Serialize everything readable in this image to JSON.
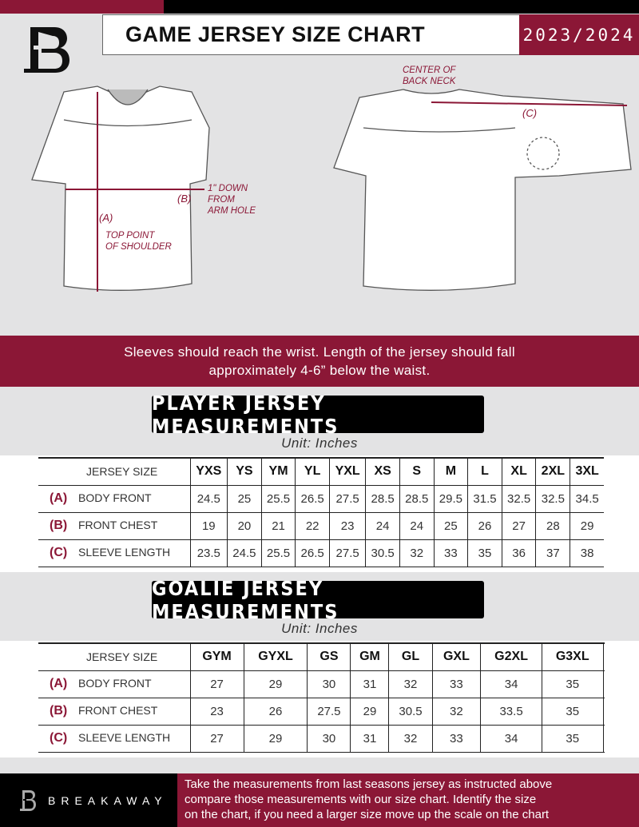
{
  "colors": {
    "accent": "#8b1736",
    "background": "#e3e3e4"
  },
  "header": {
    "title": "GAME JERSEY SIZE CHART",
    "season": "2023/2024",
    "logo": "B"
  },
  "diagram": {
    "front_labels": {
      "a": "(A)",
      "b": "(B)",
      "arm_hole": [
        "1\" DOWN",
        "FROM",
        "ARM HOLE"
      ],
      "shoulder": [
        "TOP POINT",
        "OF SHOULDER"
      ]
    },
    "back_labels": {
      "c": "(C)",
      "neck": [
        "CENTER OF",
        "BACK NECK"
      ]
    }
  },
  "band": {
    "line1": "Sleeves should reach the wrist. Length of the jersey should fall",
    "line2": "approximately 4-6” below the waist."
  },
  "player": {
    "title": "PLAYER JERSEY MEASUREMENTS",
    "unit": "Unit: Inches",
    "header_label": "JERSEY SIZE",
    "sizes": [
      "YXS",
      "YS",
      "YM",
      "YL",
      "YXL",
      "XS",
      "S",
      "M",
      "L",
      "XL",
      "2XL",
      "3XL"
    ],
    "rows": [
      {
        "code": "(A)",
        "label": "BODY FRONT",
        "values": [
          "24.5",
          "25",
          "25.5",
          "26.5",
          "27.5",
          "28.5",
          "28.5",
          "29.5",
          "31.5",
          "32.5",
          "32.5",
          "34.5"
        ]
      },
      {
        "code": "(B)",
        "label": "FRONT CHEST",
        "values": [
          "19",
          "20",
          "21",
          "22",
          "23",
          "24",
          "24",
          "25",
          "26",
          "27",
          "28",
          "29"
        ]
      },
      {
        "code": "(C)",
        "label": "SLEEVE LENGTH",
        "values": [
          "23.5",
          "24.5",
          "25.5",
          "26.5",
          "27.5",
          "30.5",
          "32",
          "33",
          "35",
          "36",
          "37",
          "38"
        ]
      }
    ]
  },
  "goalie": {
    "title": "GOALIE JERSEY MEASUREMENTS",
    "unit": "Unit: Inches",
    "header_label": "JERSEY SIZE",
    "sizes": [
      "GYM",
      "GYXL",
      "GS",
      "GM",
      "GL",
      "GXL",
      "G2XL",
      "G3XL",
      ""
    ],
    "rows": [
      {
        "code": "(A)",
        "label": "BODY FRONT",
        "values": [
          "27",
          "29",
          "30",
          "31",
          "32",
          "33",
          "34",
          "35",
          ""
        ]
      },
      {
        "code": "(B)",
        "label": "FRONT CHEST",
        "values": [
          "23",
          "26",
          "27.5",
          "29",
          "30.5",
          "32",
          "33.5",
          "35",
          ""
        ]
      },
      {
        "code": "(C)",
        "label": "SLEEVE LENGTH",
        "values": [
          "27",
          "29",
          "30",
          "31",
          "32",
          "33",
          "34",
          "35",
          ""
        ]
      }
    ]
  },
  "footer": {
    "brand": "BREAKAWAY",
    "text": [
      "Take the measurements from last seasons jersey as instructed above",
      "compare those measurements  with our size chart. Identify the size",
      "on the chart, if you need a larger size move up the scale on the chart"
    ]
  }
}
